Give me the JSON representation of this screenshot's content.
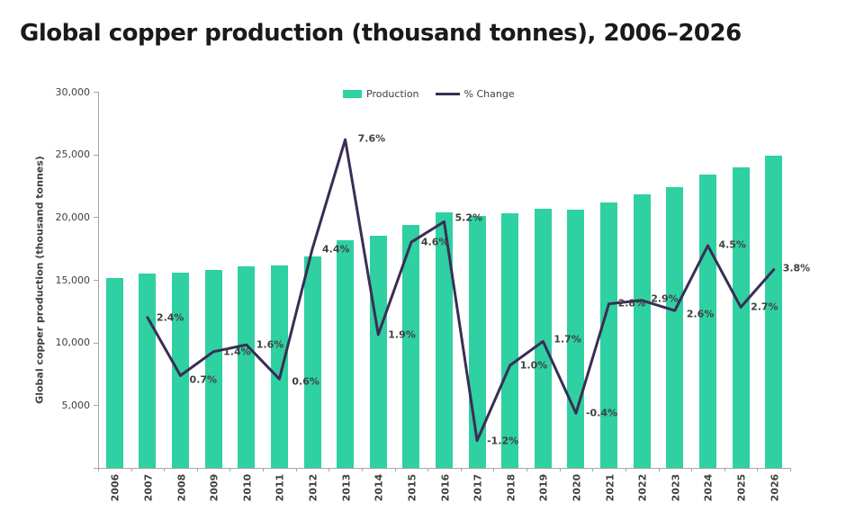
{
  "title": "Global copper production (thousand tonnes), 2006–2026",
  "y_axis": {
    "label": "Global copper production (thousand tonnes)",
    "tick_labels": [
      "5,000",
      "10,000",
      "15,000",
      "20,000",
      "25,000",
      "30,000"
    ]
  },
  "legend": {
    "production": "Production",
    "pct_change": "% Change"
  },
  "colors": {
    "bar": "#2fd0a2",
    "line": "#3a2d55",
    "label_text": "#404040",
    "axis": "#a6a6a6",
    "title_text": "#1a1a1a"
  },
  "chart_data": {
    "type": "bar",
    "combo": "bar+line",
    "title": "Global copper production (thousand tonnes), 2006–2026",
    "categories": [
      "2006",
      "2007",
      "2008",
      "2009",
      "2010",
      "2011",
      "2012",
      "2013",
      "2014",
      "2015",
      "2016",
      "2017",
      "2018",
      "2019",
      "2020",
      "2021",
      "2022",
      "2023",
      "2024",
      "2025",
      "2026"
    ],
    "series": [
      {
        "name": "Production",
        "type": "bar",
        "axis": "left",
        "unit": "thousand tonnes",
        "values": [
          15150,
          15500,
          15600,
          15820,
          16070,
          16170,
          16880,
          18160,
          18510,
          19360,
          20370,
          20130,
          20330,
          20680,
          20600,
          21180,
          21790,
          22360,
          23370,
          24000,
          24900
        ]
      },
      {
        "name": "% Change",
        "type": "line",
        "axis": "right",
        "unit": "%",
        "values": [
          null,
          2.4,
          0.7,
          1.4,
          1.6,
          0.6,
          4.4,
          7.6,
          1.9,
          4.6,
          5.2,
          -1.2,
          1.0,
          1.7,
          -0.4,
          2.8,
          2.9,
          2.6,
          4.5,
          2.7,
          3.8
        ],
        "point_labels": [
          null,
          "2.4%",
          "0.7%",
          "1.4%",
          "1.6%",
          "0.6%",
          "4.4%",
          "7.6%",
          "1.9%",
          "4.6%",
          "5.2%",
          "-1.2%",
          "1.0%",
          "1.7%",
          "-0.4%",
          "2.8%",
          "2.9%",
          "2.6%",
          "4.5%",
          "2.7%",
          "3.8%"
        ]
      }
    ],
    "left_axis": {
      "min": 0,
      "max": 30000,
      "tick_step": 5000
    },
    "right_axis": {
      "min": -2,
      "max": 9,
      "visible": false
    },
    "grid": false,
    "legend_position": "top-center"
  }
}
